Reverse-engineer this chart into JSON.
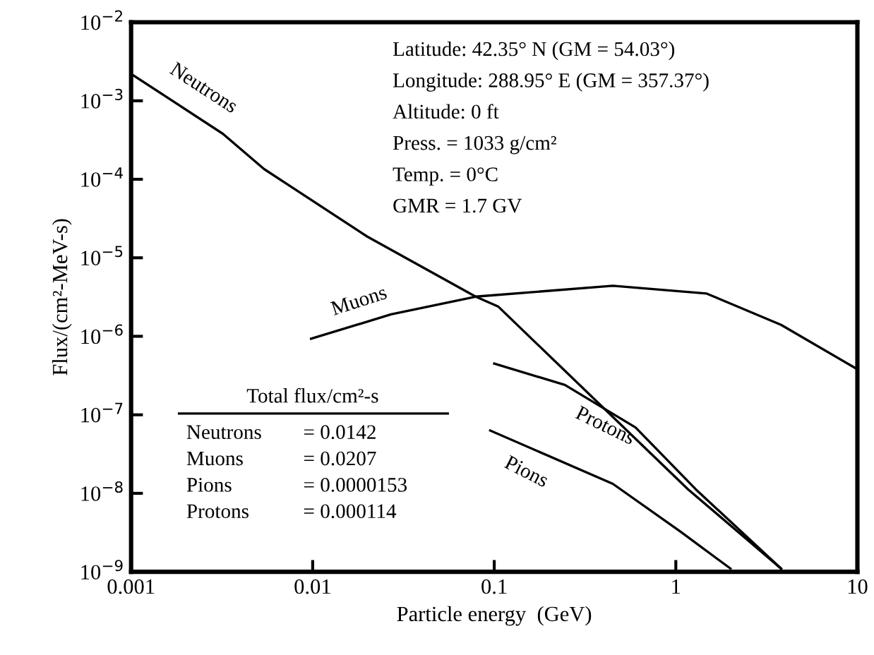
{
  "chart_data": {
    "type": "line",
    "xlabel": "Particle energy  (GeV)",
    "ylabel": "Flux/(cm²-MeV-s)",
    "log": "xy",
    "xlim": [
      0.001,
      10
    ],
    "ylim": [
      1e-09,
      0.01
    ],
    "xticks": [
      0.001,
      0.01,
      0.1,
      1,
      10
    ],
    "yticks": [
      {
        "value": 1e-09,
        "label": "10$^{−9}$"
      },
      {
        "value": 1e-08,
        "label": "10$^{−8}$"
      },
      {
        "value": 1e-07,
        "label": "10$^{−7}$"
      },
      {
        "value": 1e-06,
        "label": "10$^{−6}$"
      },
      {
        "value": 1e-05,
        "label": "10$^{−5}$"
      },
      {
        "value": 0.0001,
        "label": "10$^{−4}$"
      },
      {
        "value": 0.001,
        "label": "10$^{−3}$"
      },
      {
        "value": 0.01,
        "label": "10$^{−2}$"
      }
    ],
    "grid": false,
    "legend": false,
    "marker": "none",
    "line_style": "solid",
    "series": [
      {
        "name": "Neutrons",
        "color": "#000000",
        "x": [
          0.001,
          0.0032,
          0.0054,
          0.02,
          0.079,
          0.105,
          1.17,
          3.8
        ],
        "values": [
          0.0022,
          0.00038,
          0.000135,
          1.86e-05,
          3.2e-06,
          2.4e-06,
          1.12e-08,
          1.1e-09
        ]
      },
      {
        "name": "Muons",
        "color": "#000000",
        "x": [
          0.0098,
          0.027,
          0.079,
          0.45,
          1.48,
          3.8,
          10
        ],
        "values": [
          9.3e-07,
          1.9e-06,
          3.2e-06,
          4.4e-06,
          3.5e-06,
          1.4e-06,
          3.8e-07
        ]
      },
      {
        "name": "Protons",
        "color": "#000000",
        "x": [
          0.1,
          0.245,
          0.6,
          1.29,
          3.8
        ],
        "values": [
          4.5e-07,
          2.4e-07,
          6.9e-08,
          1.12e-08,
          1.1e-09
        ]
      },
      {
        "name": "Pions",
        "color": "#000000",
        "x": [
          0.095,
          0.45,
          1.07,
          2.0
        ],
        "values": [
          6.3e-08,
          1.32e-08,
          3.2e-09,
          1.1e-09
        ]
      }
    ],
    "annotations": [
      "Latitude: 42.35° N (GM = 54.03°)",
      "Longitude: 288.95° E (GM = 357.37°)",
      "Altitude: 0 ft",
      "Press. = 1033 g/cm²",
      "Temp. = 0°C",
      "GMR = 1.7 GV",
      "Total flux/cm²-s",
      "Neutrons = 0.0142",
      "Muons = 0.0207",
      "Pions = 0.0000153",
      "Protons = 0.000114"
    ]
  }
}
